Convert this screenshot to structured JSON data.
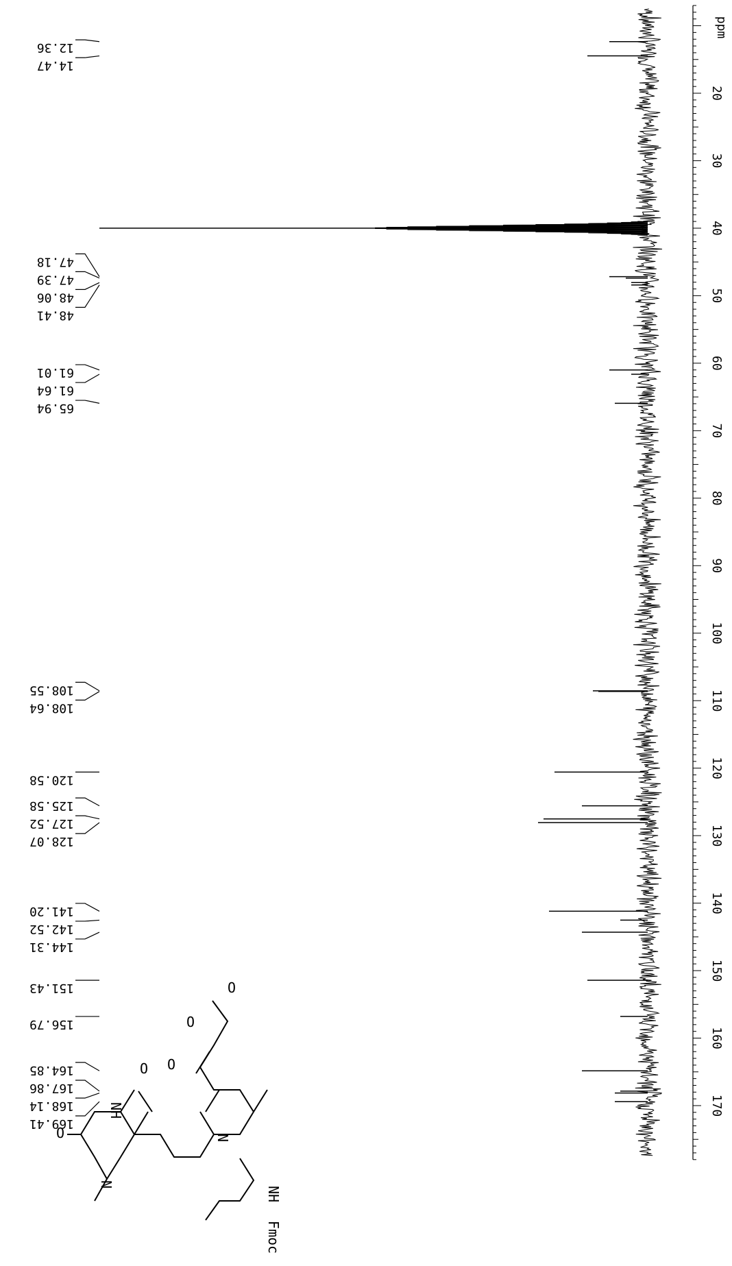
{
  "chart_data": {
    "type": "line",
    "title": "",
    "xlabel": "",
    "ylabel": "",
    "axis_unit": "ppm",
    "xlim": [
      7,
      178
    ],
    "orientation": "rotated-90",
    "axis_tick_labels": [
      20,
      30,
      40,
      50,
      60,
      70,
      80,
      90,
      100,
      110,
      120,
      130,
      140,
      150,
      160,
      170
    ],
    "peak_labels": [
      "12.36",
      "14.47",
      "47.18",
      "47.39",
      "48.06",
      "48.41",
      "61.01",
      "61.64",
      "65.94",
      "108.55",
      "108.64",
      "120.58",
      "125.58",
      "127.52",
      "128.07",
      "141.20",
      "142.52",
      "144.31",
      "151.43",
      "156.79",
      "164.85",
      "167.86",
      "168.14",
      "169.41"
    ],
    "peaks": [
      {
        "ppm": 12.36,
        "intensity": 0.07
      },
      {
        "ppm": 14.47,
        "intensity": 0.11
      },
      {
        "ppm": 40.0,
        "intensity": 1.0
      },
      {
        "ppm": 47.18,
        "intensity": 0.07
      },
      {
        "ppm": 47.39,
        "intensity": 0.04
      },
      {
        "ppm": 48.06,
        "intensity": 0.03
      },
      {
        "ppm": 48.41,
        "intensity": 0.03
      },
      {
        "ppm": 61.01,
        "intensity": 0.07
      },
      {
        "ppm": 61.64,
        "intensity": 0.03
      },
      {
        "ppm": 65.94,
        "intensity": 0.06
      },
      {
        "ppm": 108.55,
        "intensity": 0.1
      },
      {
        "ppm": 108.64,
        "intensity": 0.09
      },
      {
        "ppm": 120.58,
        "intensity": 0.17
      },
      {
        "ppm": 125.58,
        "intensity": 0.12
      },
      {
        "ppm": 127.52,
        "intensity": 0.19
      },
      {
        "ppm": 128.07,
        "intensity": 0.2
      },
      {
        "ppm": 141.2,
        "intensity": 0.18
      },
      {
        "ppm": 142.52,
        "intensity": 0.05
      },
      {
        "ppm": 144.31,
        "intensity": 0.12
      },
      {
        "ppm": 151.43,
        "intensity": 0.11
      },
      {
        "ppm": 156.79,
        "intensity": 0.05
      },
      {
        "ppm": 164.85,
        "intensity": 0.12
      },
      {
        "ppm": 167.86,
        "intensity": 0.05
      },
      {
        "ppm": 168.14,
        "intensity": 0.06
      },
      {
        "ppm": 169.41,
        "intensity": 0.06
      }
    ]
  },
  "structure": {
    "atom_labels": [
      "O",
      "NH",
      "O",
      "N",
      "O",
      "N",
      "O",
      "O",
      "NH",
      "Fmoc"
    ]
  }
}
